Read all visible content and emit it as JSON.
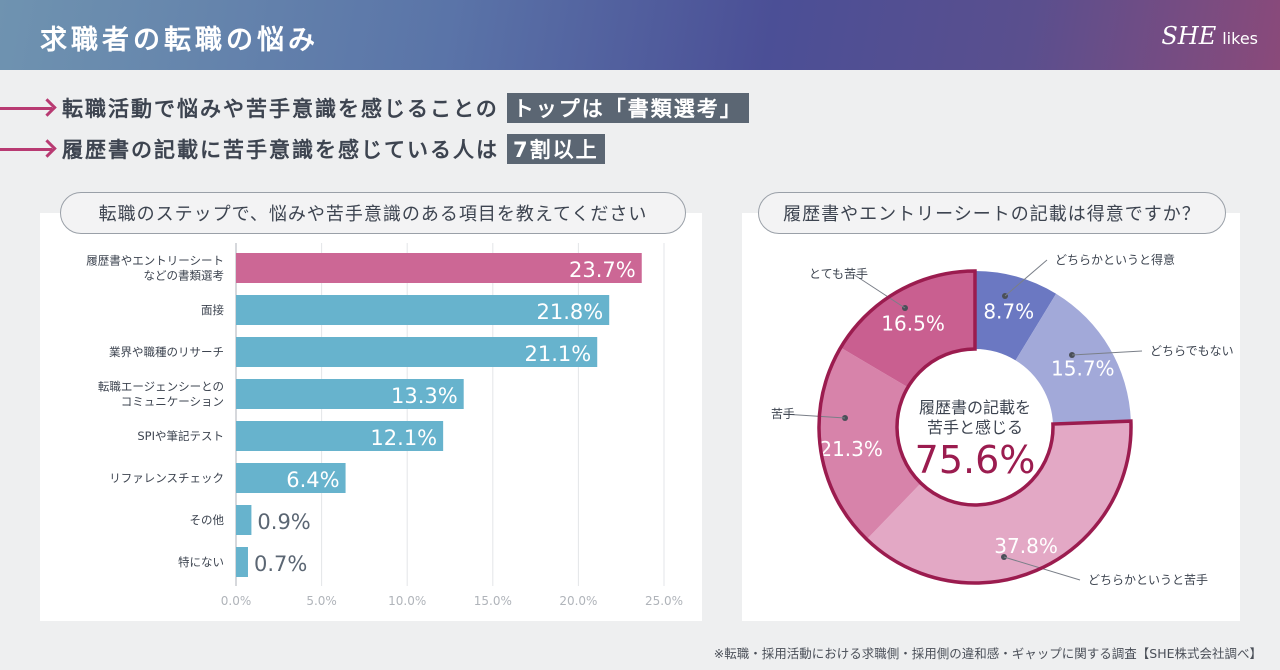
{
  "header": {
    "title": "求職者の転職の悩み",
    "logo": "SHE likes"
  },
  "highlights": [
    {
      "text": "転職活動で悩みや苦手意識を感じることの",
      "tag": "トップは「書類選考」"
    },
    {
      "text": "履歴書の記載に苦手意識を感じている人は",
      "tag": "7割以上"
    }
  ],
  "footnote": "※転職・採用活動における求職側・採用側の違和感・ギャップに関する調査【SHE株式会社調べ】",
  "colors": {
    "highlight_bar": "#cc6795",
    "bar": "#67b3cd",
    "accent": "#9b1c4f"
  },
  "chart_data": [
    {
      "type": "bar",
      "orientation": "horizontal",
      "title": "転職のステップで、悩みや苦手意識のある項目を教えてください",
      "categories": [
        "履歴書やエントリーシート\nなどの書類選考",
        "面接",
        "業界や職種のリサーチ",
        "転職エージェンシーとの\nコミュニケーション",
        "SPIや筆記テスト",
        "リファレンスチェック",
        "その他",
        "特にない"
      ],
      "values": [
        23.7,
        21.8,
        21.1,
        13.3,
        12.1,
        6.4,
        0.9,
        0.7
      ],
      "value_labels": [
        "23.7%",
        "21.8%",
        "21.1%",
        "13.3%",
        "12.1%",
        "6.4%",
        "0.9%",
        "0.7%"
      ],
      "xlim": [
        0,
        25
      ],
      "ticks": [
        "0.0%",
        "5.0%",
        "10.0%",
        "15.0%",
        "20.0%",
        "25.0%"
      ],
      "grid": true
    },
    {
      "type": "pie",
      "donut": true,
      "title": "履歴書やエントリーシートの記載は得意ですか？",
      "slices": [
        {
          "label": "どちらかというと得意",
          "value": 8.7,
          "text": "8.7%",
          "color": "#6b78c2"
        },
        {
          "label": "どちらでもない",
          "value": 15.7,
          "text": "15.7%",
          "color": "#a2a9d9"
        },
        {
          "label": "どちらかというと苦手",
          "value": 37.8,
          "text": "37.8%",
          "color": "#e3a8c5"
        },
        {
          "label": "苦手",
          "value": 21.3,
          "text": "21.3%",
          "color": "#d783aa"
        },
        {
          "label": "とても苦手",
          "value": 16.5,
          "text": "16.5%",
          "color": "#c95f90"
        }
      ],
      "center": {
        "line1": "履歴書の記載を",
        "line2": "苦手と感じる",
        "value": "75.6%"
      }
    }
  ]
}
